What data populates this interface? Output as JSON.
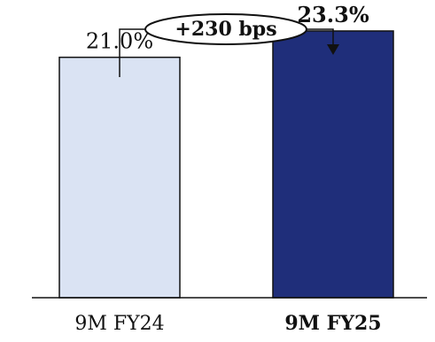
{
  "chart_data": {
    "type": "bar",
    "categories": [
      "9M FY24",
      "9M FY25"
    ],
    "values": [
      21.0,
      23.3
    ],
    "value_labels": [
      "21.0%",
      "23.3%"
    ],
    "bar_colors": [
      "#dae3f3",
      "#1f2e7a"
    ],
    "emphasis": [
      false,
      true
    ],
    "ylim": [
      0,
      25
    ],
    "grid": false,
    "legend": "none",
    "annotation": {
      "text": "+230 bps",
      "from_category": "9M FY24",
      "to_category": "9M FY25"
    }
  }
}
